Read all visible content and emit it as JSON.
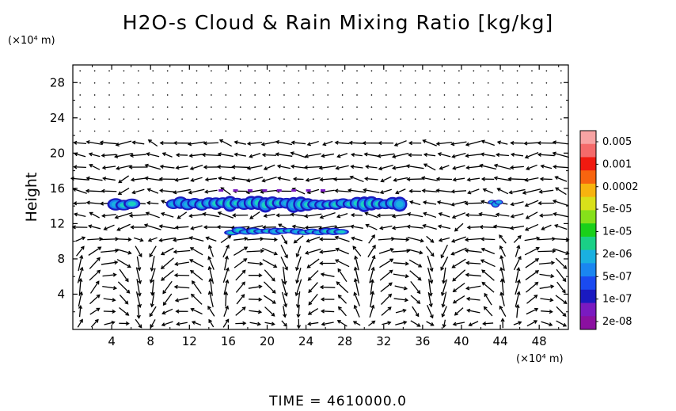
{
  "chart_data": {
    "type": "heatmap",
    "title": "H2O-s Cloud & Rain Mixing Ratio [kg/kg]",
    "ylabel": "Height",
    "y_unit": "(×10⁴ m)",
    "x_unit": "(×10⁴ m)",
    "x_ticks": [
      "4",
      "8",
      "12",
      "16",
      "20",
      "24",
      "28",
      "32",
      "36",
      "40",
      "44",
      "48"
    ],
    "y_ticks": [
      "4",
      "8",
      "12",
      "16",
      "20",
      "24",
      "28"
    ],
    "xlim": [
      0,
      51
    ],
    "ylim": [
      0,
      30
    ],
    "colorbar": {
      "labels": [
        "0.005",
        "0.001",
        "0.0002",
        "5e-05",
        "1e-05",
        "2e-06",
        "5e-07",
        "1e-07",
        "2e-08"
      ],
      "colors": [
        "#f7a3a3",
        "#f46a6a",
        "#f01a10",
        "#f7640f",
        "#f7b30f",
        "#d9e01a",
        "#86e01a",
        "#1ad01a",
        "#1ad086",
        "#1ab0e0",
        "#1a86f0",
        "#1a4af0",
        "#1a1ac0",
        "#7a1ac0",
        "#8b10a0"
      ]
    },
    "features": [
      {
        "name": "upper cloud band",
        "x": [
          10,
          34
        ],
        "y": [
          13.5,
          15
        ]
      },
      {
        "name": "left cloud patch",
        "x": [
          4,
          6.5
        ],
        "y": [
          13.5,
          14.8
        ]
      },
      {
        "name": "right cloud patch",
        "x": [
          43,
          44
        ],
        "y": [
          14,
          14.6
        ]
      },
      {
        "name": "lower cloud line",
        "x": [
          16,
          28
        ],
        "y": [
          10.8,
          11.4
        ]
      }
    ],
    "vectors": "wind field arrows on grid"
  },
  "time_label": "TIME = 4610000.0"
}
